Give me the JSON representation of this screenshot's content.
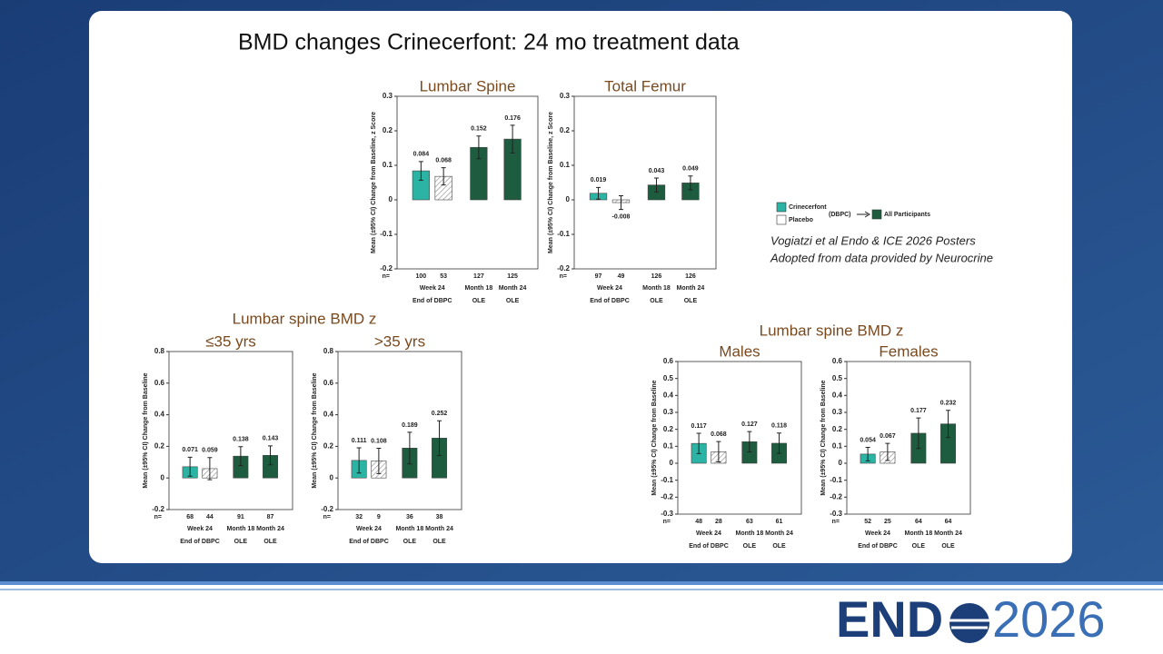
{
  "slide": {
    "title": "BMD changes Crinecerfont: 24 mo treatment data",
    "group_titles": [
      "Lumbar spine BMD z",
      "Lumbar spine BMD z"
    ],
    "citation": [
      "Vogiatzi et al Endo & ICE 2026 Posters",
      "Adopted from data provided by Neurocrine"
    ],
    "legend": {
      "items": [
        {
          "name": "Crinecerfont",
          "color": "#2bb3a3"
        },
        {
          "name": "Placebo",
          "color": "#ffffff"
        },
        {
          "name": "All Participants",
          "color": "#1d5c3e"
        }
      ],
      "note": "(DBPC)"
    },
    "logo": {
      "left": "END",
      "right": "2026"
    }
  },
  "chart_data": [
    {
      "type": "bar",
      "title": "Lumbar Spine",
      "ylabel": "Mean (±95% CI) Change from Baseline, z Score",
      "values": [
        0.084,
        0.068,
        0.152,
        0.176
      ],
      "errors": [
        0.027,
        0.025,
        0.033,
        0.04
      ],
      "colors": [
        "#2bb3a3",
        "#ffffff",
        "#1d5c3e",
        "#1d5c3e"
      ],
      "hatched": [
        false,
        true,
        false,
        false
      ],
      "n_label": "n=",
      "n": [
        100,
        53,
        127,
        125
      ],
      "groups": [
        {
          "label": "Week 24",
          "sublabel": "End of DBPC",
          "color": "#d08a2a"
        },
        {
          "label": "Month 18",
          "sublabel": "OLE",
          "color": "#7a4ea0"
        },
        {
          "label": "Month 24",
          "sublabel": "OLE",
          "color": "#7a4ea0"
        }
      ],
      "ylim": [
        -0.2,
        0.3
      ],
      "yticks": [
        -0.2,
        -0.1,
        0,
        0.1,
        0.2,
        0.3
      ]
    },
    {
      "type": "bar",
      "title": "Total Femur",
      "ylabel": "Mean (±95% CI) Change from Baseline, z Score",
      "values": [
        0.019,
        -0.008,
        0.043,
        0.049
      ],
      "errors": [
        0.017,
        0.02,
        0.02,
        0.02
      ],
      "colors": [
        "#2bb3a3",
        "#ffffff",
        "#1d5c3e",
        "#1d5c3e"
      ],
      "hatched": [
        false,
        true,
        false,
        false
      ],
      "n_label": "n=",
      "n": [
        97,
        49,
        126,
        126
      ],
      "groups": [
        {
          "label": "Week 24",
          "sublabel": "End of DBPC",
          "color": "#d08a2a"
        },
        {
          "label": "Month 18",
          "sublabel": "OLE",
          "color": "#7a4ea0"
        },
        {
          "label": "Month 24",
          "sublabel": "OLE",
          "color": "#7a4ea0"
        }
      ],
      "ylim": [
        -0.2,
        0.3
      ],
      "yticks": [
        -0.2,
        -0.1,
        0,
        0.1,
        0.2,
        0.3
      ]
    },
    {
      "type": "bar",
      "title": "≤35 yrs",
      "ylabel": "Mean (±95% CI) Change from Baseline",
      "values": [
        0.071,
        0.059,
        0.138,
        0.143
      ],
      "errors": [
        0.06,
        0.07,
        0.06,
        0.06
      ],
      "colors": [
        "#2bb3a3",
        "#ffffff",
        "#1d5c3e",
        "#1d5c3e"
      ],
      "hatched": [
        false,
        true,
        false,
        false
      ],
      "n_label": "n=",
      "n": [
        68,
        44,
        91,
        87
      ],
      "groups": [
        {
          "label": "Week 24",
          "sublabel": "End of DBPC",
          "color": "#d08a2a"
        },
        {
          "label": "Month 18",
          "sublabel": "OLE",
          "color": "#7a4ea0"
        },
        {
          "label": "Month 24",
          "sublabel": "OLE",
          "color": "#7a4ea0"
        }
      ],
      "ylim": [
        -0.2,
        0.8
      ],
      "yticks": [
        -0.2,
        0,
        0.2,
        0.4,
        0.6,
        0.8
      ]
    },
    {
      "type": "bar",
      "title": ">35 yrs",
      "ylabel": "Mean (±95% CI) Change from Baseline",
      "values": [
        0.111,
        0.108,
        0.189,
        0.252
      ],
      "errors": [
        0.08,
        0.08,
        0.1,
        0.11
      ],
      "colors": [
        "#2bb3a3",
        "#ffffff",
        "#1d5c3e",
        "#1d5c3e"
      ],
      "hatched": [
        false,
        true,
        false,
        false
      ],
      "n_label": "n=",
      "n": [
        32,
        9,
        36,
        38
      ],
      "groups": [
        {
          "label": "Week 24",
          "sublabel": "End of DBPC",
          "color": "#d08a2a"
        },
        {
          "label": "Month 18",
          "sublabel": "OLE",
          "color": "#7a4ea0"
        },
        {
          "label": "Month 24",
          "sublabel": "OLE",
          "color": "#7a4ea0"
        }
      ],
      "ylim": [
        -0.2,
        0.8
      ],
      "yticks": [
        -0.2,
        0,
        0.2,
        0.4,
        0.6,
        0.8
      ]
    },
    {
      "type": "bar",
      "title": "Males",
      "ylabel": "Mean (±95% CI) Change from Baseline",
      "values": [
        0.117,
        0.068,
        0.127,
        0.118
      ],
      "errors": [
        0.06,
        0.06,
        0.06,
        0.06
      ],
      "colors": [
        "#2bb3a3",
        "#ffffff",
        "#1d5c3e",
        "#1d5c3e"
      ],
      "hatched": [
        false,
        true,
        false,
        false
      ],
      "n_label": "n=",
      "n": [
        48,
        28,
        63,
        61
      ],
      "groups": [
        {
          "label": "Week 24",
          "sublabel": "End of DBPC",
          "color": "#d08a2a"
        },
        {
          "label": "Month 18",
          "sublabel": "OLE",
          "color": "#7a4ea0"
        },
        {
          "label": "Month 24",
          "sublabel": "OLE",
          "color": "#7a4ea0"
        }
      ],
      "ylim": [
        -0.3,
        0.6
      ],
      "yticks": [
        -0.3,
        -0.2,
        -0.1,
        0,
        0.1,
        0.2,
        0.3,
        0.4,
        0.5,
        0.6
      ]
    },
    {
      "type": "bar",
      "title": "Females",
      "ylabel": "Mean (±95% CI) Change from Baseline",
      "values": [
        0.054,
        0.067,
        0.177,
        0.232
      ],
      "errors": [
        0.04,
        0.05,
        0.09,
        0.08
      ],
      "colors": [
        "#2bb3a3",
        "#ffffff",
        "#1d5c3e",
        "#1d5c3e"
      ],
      "hatched": [
        false,
        true,
        false,
        false
      ],
      "n_label": "n=",
      "n": [
        52,
        25,
        64,
        64
      ],
      "groups": [
        {
          "label": "Week 24",
          "sublabel": "End of DBPC",
          "color": "#d08a2a"
        },
        {
          "label": "Month 18",
          "sublabel": "OLE",
          "color": "#7a4ea0"
        },
        {
          "label": "Month 24",
          "sublabel": "OLE",
          "color": "#7a4ea0"
        }
      ],
      "ylim": [
        -0.3,
        0.6
      ],
      "yticks": [
        -0.3,
        -0.2,
        -0.1,
        0,
        0.1,
        0.2,
        0.3,
        0.4,
        0.5,
        0.6
      ]
    }
  ]
}
